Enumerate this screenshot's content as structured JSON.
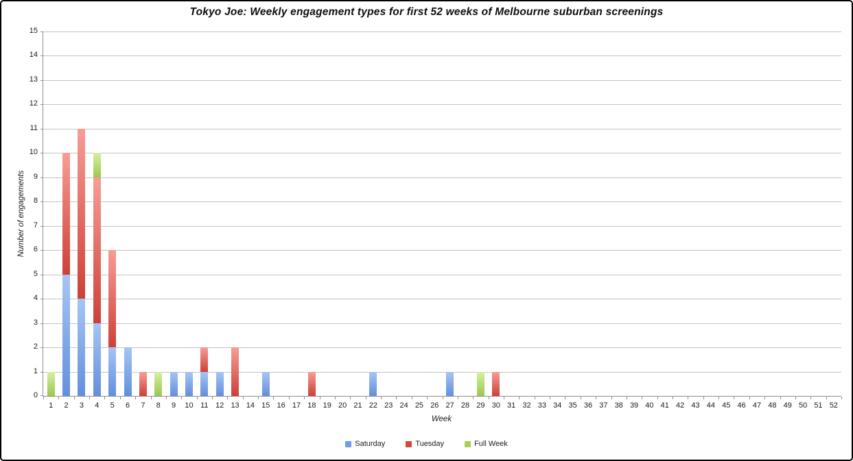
{
  "chart_data": {
    "type": "bar",
    "stacked": true,
    "title": "Tokyo Joe: Weekly engagement types for first 52 weeks of Melbourne suburban screenings",
    "xlabel": "Week",
    "ylabel": "Number of engagements",
    "ylim": [
      0,
      15
    ],
    "y_tick_step": 1,
    "grid": true,
    "legend_position": "bottom",
    "categories": [
      1,
      2,
      3,
      4,
      5,
      6,
      7,
      8,
      9,
      10,
      11,
      12,
      13,
      14,
      15,
      16,
      17,
      18,
      19,
      20,
      21,
      22,
      23,
      24,
      25,
      26,
      27,
      28,
      29,
      30,
      31,
      32,
      33,
      34,
      35,
      36,
      37,
      38,
      39,
      40,
      41,
      42,
      43,
      44,
      45,
      46,
      47,
      48,
      49,
      50,
      51,
      52
    ],
    "series": [
      {
        "name": "Saturday",
        "key": "saturday",
        "color_light": "#A6C5F4",
        "color_dark": "#6190DC",
        "color_legend": "#6E9CE8",
        "values": [
          0,
          5,
          4,
          3,
          2,
          2,
          0,
          0,
          1,
          1,
          1,
          1,
          0,
          0,
          1,
          0,
          0,
          0,
          0,
          0,
          0,
          1,
          0,
          0,
          0,
          0,
          1,
          0,
          0,
          0,
          0,
          0,
          0,
          0,
          0,
          0,
          0,
          0,
          0,
          0,
          0,
          0,
          0,
          0,
          0,
          0,
          0,
          0,
          0,
          0,
          0,
          0
        ]
      },
      {
        "name": "Tuesday",
        "key": "tuesday",
        "color_light": "#F79D96",
        "color_dark": "#CD4038",
        "color_legend": "#D3493F",
        "values": [
          0,
          5,
          7,
          6,
          4,
          0,
          1,
          0,
          0,
          0,
          1,
          0,
          2,
          0,
          0,
          0,
          0,
          1,
          0,
          0,
          0,
          0,
          0,
          0,
          0,
          0,
          0,
          0,
          0,
          1,
          0,
          0,
          0,
          0,
          0,
          0,
          0,
          0,
          0,
          0,
          0,
          0,
          0,
          0,
          0,
          0,
          0,
          0,
          0,
          0,
          0,
          0
        ]
      },
      {
        "name": "Full Week",
        "key": "full-week",
        "color_light": "#D7EFA2",
        "color_dark": "#9BC84B",
        "color_legend": "#A8D054",
        "values": [
          1,
          0,
          0,
          1,
          0,
          0,
          0,
          1,
          0,
          0,
          0,
          0,
          0,
          0,
          0,
          0,
          0,
          0,
          0,
          0,
          0,
          0,
          0,
          0,
          0,
          0,
          0,
          0,
          1,
          0,
          0,
          0,
          0,
          0,
          0,
          0,
          0,
          0,
          0,
          0,
          0,
          0,
          0,
          0,
          0,
          0,
          0,
          0,
          0,
          0,
          0,
          0
        ]
      }
    ],
    "colors": {
      "gridline": "#C3C3C3",
      "axis": "#8E8E8E",
      "text": "#1A1A1A",
      "background": "#FFFFFF"
    }
  }
}
